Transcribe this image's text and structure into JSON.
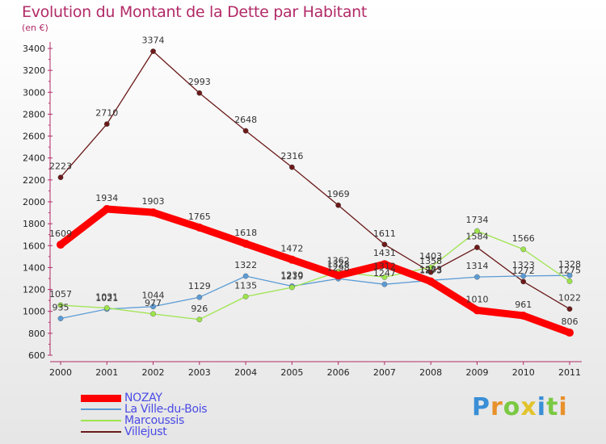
{
  "chart_data": {
    "type": "line",
    "title": "Evolution du Montant de la Dette par Habitant",
    "unit_label": "(en €)",
    "x": [
      "2000",
      "2001",
      "2002",
      "2003",
      "2004",
      "2005",
      "2006",
      "2007",
      "2008",
      "2009",
      "2010",
      "2011"
    ],
    "ylim": [
      600,
      3400
    ],
    "yticks": [
      600,
      800,
      1000,
      1200,
      1400,
      1600,
      1800,
      2000,
      2200,
      2400,
      2600,
      2800,
      3000,
      3200,
      3400
    ],
    "grid": false,
    "legend_position": "bottom-left",
    "series": [
      {
        "name": "NOZAY",
        "color": "#ff0000",
        "values": [
          1609,
          1934,
          1903,
          1765,
          1618,
          1472,
          1328,
          1431,
          1273,
          1010,
          961,
          806
        ]
      },
      {
        "name": "La Ville-du-Bois",
        "color": "#5b9bd5",
        "values": [
          935,
          1021,
          1044,
          1129,
          1322,
          1230,
          1298,
          1247,
          1283,
          1314,
          1323,
          1328
        ]
      },
      {
        "name": "Marcoussis",
        "color": "#9de44c",
        "values": [
          1057,
          1031,
          977,
          926,
          1135,
          1219,
          1362,
          1312,
          1403,
          1734,
          1566,
          1275
        ]
      },
      {
        "name": "Villejust",
        "color": "#6b1a1a",
        "values": [
          2223,
          2710,
          3374,
          2993,
          2648,
          2316,
          1969,
          1611,
          1358,
          1584,
          1272,
          1022
        ]
      }
    ]
  },
  "brand": {
    "letters": [
      "P",
      "r",
      "o",
      "x",
      "i",
      "t",
      "i"
    ],
    "colors": [
      "#3a8fd6",
      "#e8912c",
      "#7ac943",
      "#e2c32b",
      "#3a8fd6",
      "#7ac943",
      "#e8912c"
    ]
  }
}
